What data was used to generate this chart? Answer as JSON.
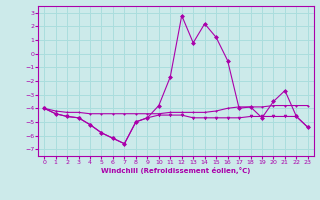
{
  "xlabel": "Windchill (Refroidissement éolien,°C)",
  "background_color": "#cceaea",
  "grid_color": "#aadddd",
  "line_color": "#aa00aa",
  "xlim": [
    -0.5,
    23.5
  ],
  "ylim": [
    -7.5,
    3.5
  ],
  "xticks": [
    0,
    1,
    2,
    3,
    4,
    5,
    6,
    7,
    8,
    9,
    10,
    11,
    12,
    13,
    14,
    15,
    16,
    17,
    18,
    19,
    20,
    21,
    22,
    23
  ],
  "yticks": [
    -7,
    -6,
    -5,
    -4,
    -3,
    -2,
    -1,
    0,
    1,
    2,
    3
  ],
  "s1_x": [
    0,
    1,
    2,
    3,
    4,
    5,
    6,
    7,
    8,
    9,
    10,
    11,
    12,
    13,
    14,
    15,
    16,
    17,
    18,
    19,
    20,
    21,
    22,
    23
  ],
  "s1_y": [
    -4.0,
    -4.2,
    -4.3,
    -4.3,
    -4.4,
    -4.4,
    -4.4,
    -4.4,
    -4.4,
    -4.4,
    -4.4,
    -4.3,
    -4.3,
    -4.3,
    -4.3,
    -4.2,
    -4.0,
    -3.9,
    -3.9,
    -3.9,
    -3.8,
    -3.8,
    -3.8,
    -3.8
  ],
  "s2_x": [
    0,
    1,
    2,
    3,
    4,
    5,
    6,
    7,
    8,
    9,
    10,
    11,
    12,
    13,
    14,
    15,
    16,
    17,
    18,
    19,
    20,
    21,
    22,
    23
  ],
  "s2_y": [
    -4.0,
    -4.4,
    -4.6,
    -4.7,
    -5.2,
    -5.8,
    -6.2,
    -6.6,
    -5.0,
    -4.7,
    -4.5,
    -4.5,
    -4.5,
    -4.7,
    -4.7,
    -4.7,
    -4.7,
    -4.7,
    -4.6,
    -4.6,
    -4.6,
    -4.6,
    -4.6,
    -5.4
  ],
  "s3_x": [
    0,
    1,
    2,
    3,
    4,
    5,
    6,
    7,
    8,
    9,
    10,
    11,
    12,
    13,
    14,
    15,
    16,
    17,
    18,
    19,
    20,
    21,
    22,
    23
  ],
  "s3_y": [
    -4.0,
    -4.4,
    -4.6,
    -4.7,
    -5.2,
    -5.8,
    -6.2,
    -6.6,
    -5.0,
    -4.7,
    -3.8,
    -1.7,
    2.8,
    0.8,
    2.2,
    1.2,
    -0.5,
    -4.0,
    -3.9,
    -4.7,
    -3.5,
    -2.7,
    -4.6,
    -5.4
  ]
}
